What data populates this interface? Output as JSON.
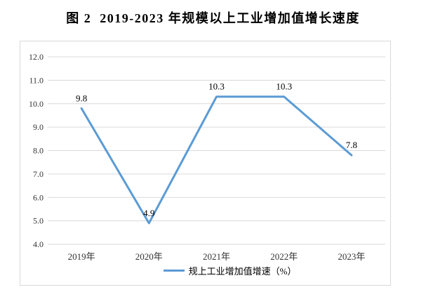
{
  "title": "图 2  2019-2023 年规模以上工业增加值增长速度",
  "chart_data": {
    "type": "line",
    "title": "图 2  2019-2023 年规模以上工业增加值增长速度",
    "categories": [
      "2019年",
      "2020年",
      "2021年",
      "2022年",
      "2023年"
    ],
    "series": [
      {
        "name": "规上工业增加值增速（%）",
        "values": [
          9.8,
          4.9,
          10.3,
          10.3,
          7.8
        ],
        "labels": [
          "9.8",
          "4.9",
          "10.3",
          "10.3",
          "7.8"
        ]
      }
    ],
    "xlabel": "",
    "ylabel": "",
    "ylim": [
      4.0,
      12.0
    ],
    "ytick_step": 1.0,
    "ytick_decimals": 1,
    "grid": true,
    "legend_position": "bottom",
    "colors": {
      "line": "#5B9BD5",
      "gridline": "#D9D9D9",
      "plot_border": "#D9D9D9",
      "tick_label": "#333333",
      "data_label": "#000000"
    }
  }
}
